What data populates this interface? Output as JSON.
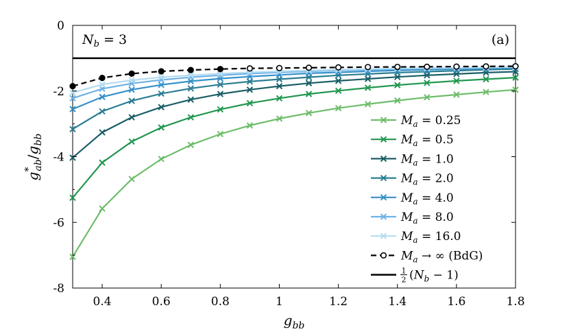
{
  "chart_data": {
    "type": "line",
    "title": "",
    "xlabel": "g_bb",
    "ylabel": "g*_ab / g_bb",
    "xlim": [
      0.3,
      1.8
    ],
    "ylim": [
      -8,
      0
    ],
    "x_ticks": [
      0.4,
      0.6,
      0.8,
      1.0,
      1.2,
      1.4,
      1.6,
      1.8
    ],
    "x_tick_labels": [
      "0.4",
      "0.6",
      "0.8",
      "1",
      "1.2",
      "1.4",
      "1.6",
      "1.8"
    ],
    "y_ticks": [
      -8,
      -6,
      -4,
      -2,
      0
    ],
    "y_tick_labels": [
      "-8",
      "-6",
      "-4",
      "-2",
      "0"
    ],
    "grid": false,
    "legend_position": "bottom-right",
    "annotations": {
      "top_left": "N_b = 3",
      "top_right": "(a)"
    },
    "x": [
      0.3,
      0.4,
      0.5,
      0.6,
      0.7,
      0.8,
      0.9,
      1.0,
      1.1,
      1.2,
      1.3,
      1.4,
      1.5,
      1.6,
      1.7,
      1.8
    ],
    "series": [
      {
        "name": "M_a = 0.25",
        "legend": [
          "M",
          "a",
          " = 0.25"
        ],
        "color": "#6dbd6a",
        "marker": "x",
        "values": [
          -7.05,
          -5.58,
          -4.68,
          -4.07,
          -3.64,
          -3.31,
          -3.05,
          -2.84,
          -2.67,
          -2.52,
          -2.4,
          -2.29,
          -2.19,
          -2.11,
          -2.03,
          -1.96
        ]
      },
      {
        "name": "M_a = 0.5",
        "legend": [
          "M",
          "a",
          " = 0.5"
        ],
        "color": "#21974f",
        "marker": "x",
        "values": [
          -5.25,
          -4.18,
          -3.54,
          -3.11,
          -2.8,
          -2.56,
          -2.37,
          -2.22,
          -2.09,
          -1.99,
          -1.9,
          -1.82,
          -1.75,
          -1.69,
          -1.64,
          -1.59
        ]
      },
      {
        "name": "M_a = 1.0",
        "legend": [
          "M",
          "a",
          " = 1.0"
        ],
        "color": "#1a5e66",
        "marker": "x",
        "values": [
          -4.03,
          -3.26,
          -2.8,
          -2.49,
          -2.26,
          -2.09,
          -1.96,
          -1.85,
          -1.76,
          -1.69,
          -1.63,
          -1.57,
          -1.52,
          -1.48,
          -1.44,
          -1.41
        ]
      },
      {
        "name": "M_a = 2.0",
        "legend": [
          "M",
          "a",
          " = 2.0"
        ],
        "color": "#2b7d92",
        "marker": "x",
        "values": [
          -3.16,
          -2.62,
          -2.3,
          -2.08,
          -1.92,
          -1.8,
          -1.71,
          -1.64,
          -1.58,
          -1.52,
          -1.48,
          -1.44,
          -1.41,
          -1.38,
          -1.35,
          -1.33
        ]
      },
      {
        "name": "M_a = 4.0",
        "legend": [
          "M",
          "a",
          " = 4.0"
        ],
        "color": "#3690c8",
        "marker": "x",
        "values": [
          -2.55,
          -2.18,
          -1.96,
          -1.81,
          -1.7,
          -1.62,
          -1.56,
          -1.51,
          -1.46,
          -1.43,
          -1.4,
          -1.37,
          -1.35,
          -1.33,
          -1.31,
          -1.29
        ]
      },
      {
        "name": "M_a = 8.0",
        "legend": [
          "M",
          "a",
          " = 8.0"
        ],
        "color": "#6eb2e6",
        "marker": "x",
        "values": [
          -2.22,
          -1.93,
          -1.77,
          -1.66,
          -1.58,
          -1.52,
          -1.47,
          -1.43,
          -1.4,
          -1.37,
          -1.35,
          -1.33,
          -1.31,
          -1.3,
          -1.29,
          -1.27
        ]
      },
      {
        "name": "M_a = 16.0",
        "legend": [
          "M",
          "a",
          " = 16.0"
        ],
        "color": "#b4dcf2",
        "marker": "x",
        "values": [
          -2.05,
          -1.8,
          -1.67,
          -1.58,
          -1.52,
          -1.47,
          -1.43,
          -1.4,
          -1.37,
          -1.35,
          -1.33,
          -1.31,
          -1.3,
          -1.29,
          -1.28,
          -1.27
        ]
      },
      {
        "name": "M_a → ∞ (BdG)",
        "legend": [
          "M",
          "a",
          " → ∞ (BdG)"
        ],
        "color": "#000000",
        "marker": "circle",
        "dashed": true,
        "values": [
          -1.85,
          -1.6,
          -1.47,
          -1.4,
          -1.36,
          -1.33,
          -1.31,
          -1.3,
          -1.29,
          -1.28,
          -1.27,
          -1.265,
          -1.26,
          -1.255,
          -1.25,
          -1.245
        ]
      },
      {
        "name": "½(N_b − 1)",
        "legend_frac": [
          "1",
          "2"
        ],
        "legend_rest": "(N",
        "legend_sub": "b",
        "legend_tail": " − 1)",
        "color": "#000000",
        "marker": "none",
        "constant": -1.0,
        "values": [
          -1,
          -1,
          -1,
          -1,
          -1,
          -1,
          -1,
          -1,
          -1,
          -1,
          -1,
          -1,
          -1,
          -1,
          -1,
          -1
        ]
      }
    ]
  }
}
